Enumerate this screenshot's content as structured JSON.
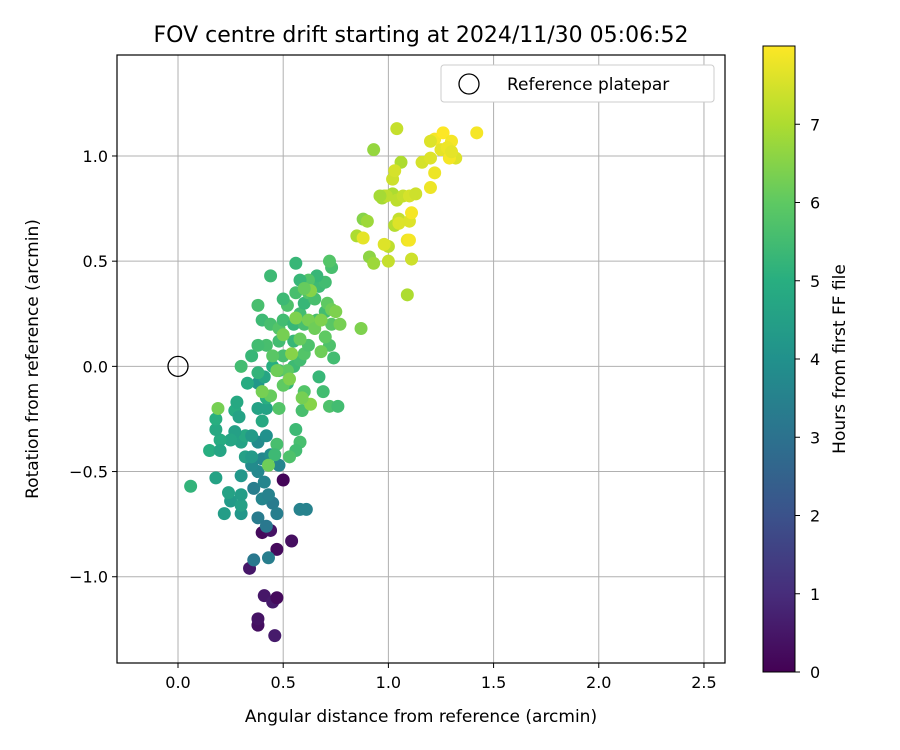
{
  "chart_data": {
    "type": "scatter",
    "title": "FOV centre drift starting at 2024/11/30 05:06:52",
    "xlabel": "Angular distance from reference (arcmin)",
    "ylabel": "Rotation from reference (arcmin)",
    "xlim": [
      -0.29,
      2.6
    ],
    "ylim": [
      -1.41,
      1.48
    ],
    "xticks": [
      0.0,
      0.5,
      1.0,
      1.5,
      2.0,
      2.5
    ],
    "xtick_labels": [
      "0.0",
      "0.5",
      "1.0",
      "1.5",
      "2.0",
      "2.5"
    ],
    "yticks": [
      -1.0,
      -0.5,
      0.0,
      0.5,
      1.0
    ],
    "ytick_labels": [
      "−1.0",
      "−0.5",
      "0.0",
      "0.5",
      "1.0"
    ],
    "grid": true,
    "legend": {
      "entry": "Reference platepar",
      "location": "top-right",
      "marker": "open-circle"
    },
    "reference_point": {
      "x": 0.0,
      "y": 0.0
    },
    "colorbar": {
      "label": "Hours from first FF file",
      "colormap": "viridis",
      "range": [
        0,
        8.0
      ],
      "ticks": [
        0,
        1,
        2,
        3,
        4,
        5,
        6,
        7
      ]
    },
    "points": [
      [
        0.38,
        -1.23,
        0.3
      ],
      [
        0.38,
        -1.2,
        0.4
      ],
      [
        0.41,
        -1.09,
        0.5
      ],
      [
        0.45,
        -1.12,
        0.6
      ],
      [
        0.46,
        -1.28,
        0.6
      ],
      [
        0.47,
        -1.1,
        0.2
      ],
      [
        0.34,
        -0.96,
        0.5
      ],
      [
        0.4,
        -0.79,
        0.2
      ],
      [
        0.47,
        -0.87,
        0.2
      ],
      [
        0.54,
        -0.83,
        0.3
      ],
      [
        0.5,
        -0.54,
        0.1
      ],
      [
        0.44,
        -0.78,
        0.4
      ],
      [
        0.36,
        -0.92,
        3.2
      ],
      [
        0.43,
        -0.91,
        3.4
      ],
      [
        0.38,
        -0.72,
        3.3
      ],
      [
        0.42,
        -0.76,
        3.2
      ],
      [
        0.45,
        -0.65,
        3.3
      ],
      [
        0.47,
        -0.7,
        3.4
      ],
      [
        0.58,
        -0.68,
        3.5
      ],
      [
        0.61,
        -0.68,
        3.5
      ],
      [
        0.36,
        -0.58,
        3.4
      ],
      [
        0.4,
        -0.63,
        3.6
      ],
      [
        0.43,
        -0.61,
        3.5
      ],
      [
        0.38,
        -0.5,
        3.7
      ],
      [
        0.41,
        -0.55,
        3.6
      ],
      [
        0.35,
        -0.47,
        3.8
      ],
      [
        0.4,
        -0.44,
        3.7
      ],
      [
        0.44,
        -0.42,
        3.9
      ],
      [
        0.48,
        -0.47,
        3.6
      ],
      [
        0.38,
        -0.36,
        3.8
      ],
      [
        0.42,
        -0.33,
        4.0
      ],
      [
        0.3,
        -0.7,
        4.2
      ],
      [
        0.22,
        -0.7,
        4.4
      ],
      [
        0.25,
        -0.64,
        4.3
      ],
      [
        0.3,
        -0.66,
        4.5
      ],
      [
        0.24,
        -0.6,
        4.6
      ],
      [
        0.3,
        -0.61,
        4.4
      ],
      [
        0.3,
        -0.52,
        4.2
      ],
      [
        0.32,
        -0.43,
        4.5
      ],
      [
        0.35,
        -0.43,
        4.3
      ],
      [
        0.3,
        -0.36,
        4.6
      ],
      [
        0.32,
        -0.33,
        4.8
      ],
      [
        0.27,
        -0.31,
        4.5
      ],
      [
        0.25,
        -0.35,
        4.7
      ],
      [
        0.2,
        -0.35,
        4.9
      ],
      [
        0.18,
        -0.3,
        4.8
      ],
      [
        0.15,
        -0.4,
        5.0
      ],
      [
        0.2,
        -0.4,
        4.7
      ],
      [
        0.27,
        -0.21,
        4.9
      ],
      [
        0.18,
        -0.25,
        5.0
      ],
      [
        0.29,
        -0.24,
        4.6
      ],
      [
        0.35,
        -0.33,
        4.3
      ],
      [
        0.28,
        -0.17,
        4.8
      ],
      [
        0.18,
        -0.53,
        4.6
      ],
      [
        0.06,
        -0.57,
        5.2
      ],
      [
        0.38,
        -0.2,
        4.6
      ],
      [
        0.4,
        -0.26,
        4.8
      ],
      [
        0.42,
        -0.2,
        4.6
      ],
      [
        0.42,
        -0.15,
        5.0
      ],
      [
        0.38,
        -0.08,
        4.2
      ],
      [
        0.41,
        -0.05,
        4.7
      ],
      [
        0.33,
        -0.08,
        4.9
      ],
      [
        0.38,
        -0.03,
        5.2
      ],
      [
        0.45,
        0.0,
        5.0
      ],
      [
        0.52,
        -0.08,
        5.3
      ],
      [
        0.48,
        -0.02,
        5.5
      ],
      [
        0.55,
        0.0,
        5.4
      ],
      [
        0.5,
        0.05,
        5.6
      ],
      [
        0.58,
        0.03,
        5.5
      ],
      [
        0.6,
        0.06,
        5.8
      ],
      [
        0.62,
        0.1,
        5.7
      ],
      [
        0.55,
        0.12,
        5.3
      ],
      [
        0.48,
        0.12,
        5.5
      ],
      [
        0.42,
        0.1,
        5.6
      ],
      [
        0.45,
        0.05,
        5.9
      ],
      [
        0.3,
        0.0,
        5.5
      ],
      [
        0.35,
        0.05,
        5.3
      ],
      [
        0.38,
        0.1,
        5.5
      ],
      [
        0.4,
        0.22,
        5.4
      ],
      [
        0.44,
        0.2,
        5.6
      ],
      [
        0.48,
        0.18,
        5.8
      ],
      [
        0.5,
        0.22,
        5.5
      ],
      [
        0.55,
        0.2,
        5.3
      ],
      [
        0.6,
        0.2,
        5.6
      ],
      [
        0.58,
        0.25,
        5.5
      ],
      [
        0.52,
        0.29,
        5.7
      ],
      [
        0.5,
        0.32,
        5.4
      ],
      [
        0.56,
        0.35,
        5.6
      ],
      [
        0.6,
        0.3,
        5.3
      ],
      [
        0.62,
        0.35,
        5.8
      ],
      [
        0.65,
        0.32,
        5.6
      ],
      [
        0.67,
        0.38,
        5.4
      ],
      [
        0.7,
        0.4,
        5.5
      ],
      [
        0.66,
        0.43,
        5.3
      ],
      [
        0.62,
        0.41,
        5.8
      ],
      [
        0.58,
        0.41,
        5.3
      ],
      [
        0.44,
        0.43,
        5.4
      ],
      [
        0.38,
        0.29,
        5.6
      ],
      [
        0.56,
        0.49,
        5.3
      ],
      [
        0.73,
        0.47,
        5.6
      ],
      [
        0.72,
        0.5,
        5.8
      ],
      [
        0.66,
        0.22,
        5.6
      ],
      [
        0.68,
        0.22,
        5.8
      ],
      [
        0.7,
        0.26,
        5.5
      ],
      [
        0.73,
        0.2,
        5.9
      ],
      [
        0.72,
        0.1,
        5.7
      ],
      [
        0.74,
        0.04,
        5.5
      ],
      [
        0.67,
        -0.05,
        5.3
      ],
      [
        0.69,
        -0.12,
        5.5
      ],
      [
        0.72,
        -0.19,
        5.7
      ],
      [
        0.76,
        -0.19,
        5.5
      ],
      [
        0.6,
        -0.12,
        5.8
      ],
      [
        0.59,
        -0.21,
        5.6
      ],
      [
        0.56,
        -0.3,
        5.4
      ],
      [
        0.58,
        -0.36,
        5.6
      ],
      [
        0.56,
        -0.4,
        5.5
      ],
      [
        0.53,
        -0.43,
        5.7
      ],
      [
        0.47,
        -0.37,
        5.6
      ],
      [
        0.46,
        -0.42,
        5.4
      ],
      [
        0.48,
        -0.2,
        5.8
      ],
      [
        0.52,
        -0.02,
        6.0
      ],
      [
        0.58,
        0.13,
        6.1
      ],
      [
        0.62,
        0.22,
        6.3
      ],
      [
        0.65,
        0.18,
        6.2
      ],
      [
        0.68,
        0.22,
        6.4
      ],
      [
        0.71,
        0.3,
        6.0
      ],
      [
        0.73,
        0.27,
        6.2
      ],
      [
        0.75,
        0.26,
        6.4
      ],
      [
        0.77,
        0.2,
        6.3
      ],
      [
        0.7,
        0.14,
        6.0
      ],
      [
        0.68,
        0.07,
        6.2
      ],
      [
        0.63,
        0.36,
        6.5
      ],
      [
        0.6,
        0.37,
        6.1
      ],
      [
        0.56,
        0.23,
        6.4
      ],
      [
        0.5,
        0.15,
        6.3
      ],
      [
        0.54,
        0.06,
        6.5
      ],
      [
        0.47,
        -0.02,
        6.2
      ],
      [
        0.5,
        -0.09,
        6.0
      ],
      [
        0.53,
        -0.06,
        6.4
      ],
      [
        0.44,
        -0.14,
        6.1
      ],
      [
        0.4,
        -0.12,
        6.3
      ],
      [
        0.43,
        -0.47,
        6.2
      ],
      [
        0.63,
        -0.18,
        6.5
      ],
      [
        0.59,
        -0.15,
        6.3
      ],
      [
        0.19,
        -0.2,
        6.3
      ],
      [
        0.87,
        0.18,
        6.4
      ],
      [
        0.88,
        0.7,
        6.5
      ],
      [
        0.91,
        0.52,
        6.6
      ],
      [
        0.93,
        0.49,
        6.8
      ],
      [
        0.85,
        0.62,
        7.0
      ],
      [
        0.9,
        0.69,
        6.8
      ],
      [
        0.93,
        1.03,
        6.7
      ],
      [
        0.97,
        0.8,
        6.9
      ],
      [
        1.0,
        0.5,
        7.3
      ],
      [
        1.0,
        0.57,
        7.2
      ],
      [
        0.98,
        0.58,
        7.6
      ],
      [
        1.03,
        0.67,
        7.1
      ],
      [
        1.05,
        0.7,
        7.3
      ],
      [
        1.02,
        0.82,
        7.0
      ],
      [
        1.04,
        0.79,
        7.2
      ],
      [
        0.98,
        0.81,
        6.9
      ],
      [
        1.02,
        0.89,
        7.4
      ],
      [
        1.06,
        0.97,
        7.0
      ],
      [
        1.03,
        0.93,
        7.5
      ],
      [
        1.04,
        1.13,
        7.3
      ],
      [
        1.07,
        0.81,
        7.3
      ],
      [
        1.1,
        0.81,
        7.5
      ],
      [
        1.13,
        0.82,
        7.4
      ],
      [
        1.1,
        0.69,
        7.6
      ],
      [
        1.09,
        0.6,
        7.8
      ],
      [
        1.11,
        0.73,
        7.9
      ],
      [
        1.09,
        0.34,
        7.0
      ],
      [
        1.11,
        0.51,
        7.4
      ],
      [
        1.16,
        0.97,
        7.5
      ],
      [
        1.2,
        0.85,
        7.8
      ],
      [
        1.2,
        0.99,
        7.6
      ],
      [
        1.22,
        0.92,
        7.8
      ],
      [
        1.22,
        1.08,
        7.9
      ],
      [
        1.25,
        1.03,
        7.7
      ],
      [
        1.26,
        1.11,
        8.0
      ],
      [
        1.3,
        1.07,
        7.9
      ],
      [
        1.28,
        1.04,
        7.8
      ],
      [
        1.32,
        0.99,
        7.6
      ],
      [
        1.29,
        0.99,
        7.9
      ],
      [
        1.3,
        1.02,
        7.7
      ],
      [
        1.42,
        1.11,
        7.9
      ],
      [
        0.99,
        0.81,
        7.2
      ],
      [
        0.96,
        0.81,
        6.9
      ],
      [
        0.88,
        0.61,
        7.7
      ],
      [
        1.2,
        1.07,
        7.6
      ],
      [
        1.05,
        0.68,
        7.6
      ],
      [
        1.1,
        0.6,
        7.9
      ]
    ]
  }
}
